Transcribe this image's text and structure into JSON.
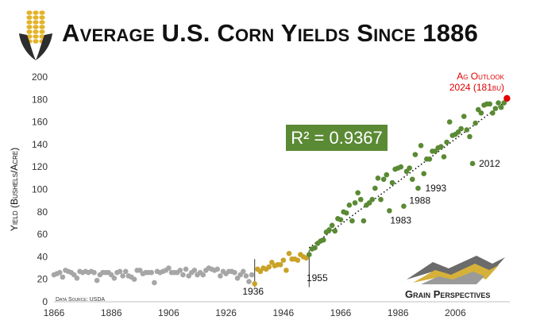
{
  "title": "Average U.S. Corn Yields Since 1886",
  "brand": "Grain Perspectives",
  "data_source": "Data Source: USDA",
  "colors": {
    "early": "#a6a6a6",
    "mid": "#c9a227",
    "modern": "#5a8a34",
    "outlook": "#e00000",
    "r2_box": "#5a8a34"
  },
  "chart_data": {
    "type": "scatter",
    "title": "Average U.S. Corn Yields Since 1886",
    "ylabel": "Yield (Bushels/Acre)",
    "xlabel": "",
    "xlim": [
      1866,
      2025
    ],
    "ylim": [
      0,
      200
    ],
    "x_ticks": [
      "1866",
      "1886",
      "1906",
      "1926",
      "1946",
      "1966",
      "1986",
      "2006"
    ],
    "y_ticks": [
      "0",
      "20",
      "40",
      "60",
      "80",
      "100",
      "120",
      "140",
      "160",
      "180",
      "200"
    ],
    "grid": false,
    "r_squared_label": "R² = 0.9367",
    "trendline": {
      "x": [
        1955,
        2024
      ],
      "y": [
        48,
        179
      ]
    },
    "dividers": [
      {
        "x": 1936,
        "label": "1936"
      },
      {
        "x": 1955,
        "label": "1955"
      }
    ],
    "annotations": [
      {
        "year": 2012,
        "value": 123,
        "label": "2012"
      },
      {
        "year": 1993,
        "value": 101,
        "label": "1993"
      },
      {
        "year": 1988,
        "value": 85,
        "label": "1988"
      },
      {
        "year": 1983,
        "value": 81,
        "label": "1983"
      }
    ],
    "outlook": {
      "year": 2024,
      "value": 181,
      "label_line1": "Ag Outlook",
      "label_line2": "2024 (181bu)"
    },
    "series": [
      {
        "name": "early",
        "x": [
          1866,
          1867,
          1868,
          1869,
          1870,
          1871,
          1872,
          1873,
          1874,
          1875,
          1876,
          1877,
          1878,
          1879,
          1880,
          1881,
          1882,
          1883,
          1884,
          1885,
          1886,
          1887,
          1888,
          1889,
          1890,
          1891,
          1892,
          1893,
          1894,
          1895,
          1896,
          1897,
          1898,
          1899,
          1900,
          1901,
          1902,
          1903,
          1904,
          1905,
          1906,
          1907,
          1908,
          1909,
          1910,
          1911,
          1912,
          1913,
          1914,
          1915,
          1916,
          1917,
          1918,
          1919,
          1920,
          1921,
          1922,
          1923,
          1924,
          1925,
          1926,
          1927,
          1928,
          1929,
          1930,
          1931,
          1932,
          1933,
          1934,
          1935
        ],
        "y": [
          24,
          25,
          26,
          22,
          28,
          27,
          26,
          24,
          21,
          27,
          26,
          27,
          26,
          27,
          26,
          19,
          24,
          26,
          26,
          26,
          24,
          21,
          26,
          27,
          23,
          27,
          23,
          22,
          20,
          28,
          28,
          25,
          26,
          26,
          26,
          17,
          27,
          26,
          27,
          28,
          30,
          26,
          26,
          26,
          28,
          24,
          29,
          23,
          26,
          28,
          24,
          26,
          24,
          28,
          30,
          29,
          28,
          29,
          23,
          27,
          25,
          27,
          27,
          26,
          21,
          24,
          27,
          23,
          18,
          24
        ]
      },
      {
        "name": "mid",
        "x": [
          1936,
          1937,
          1938,
          1939,
          1940,
          1941,
          1942,
          1943,
          1944,
          1945,
          1946,
          1947,
          1948,
          1949,
          1950,
          1951,
          1952,
          1953,
          1954
        ],
        "y": [
          16,
          29,
          27,
          30,
          29,
          31,
          35,
          32,
          33,
          33,
          37,
          28,
          43,
          38,
          38,
          37,
          42,
          40,
          39
        ]
      },
      {
        "name": "modern",
        "x": [
          1955,
          1956,
          1957,
          1958,
          1959,
          1960,
          1961,
          1962,
          1963,
          1964,
          1965,
          1966,
          1967,
          1968,
          1969,
          1970,
          1971,
          1972,
          1973,
          1974,
          1975,
          1976,
          1977,
          1978,
          1979,
          1980,
          1981,
          1982,
          1983,
          1984,
          1985,
          1986,
          1987,
          1988,
          1989,
          1990,
          1991,
          1992,
          1993,
          1994,
          1995,
          1996,
          1997,
          1998,
          1999,
          2000,
          2001,
          2002,
          2003,
          2004,
          2005,
          2006,
          2007,
          2008,
          2009,
          2010,
          2011,
          2012,
          2013,
          2014,
          2015,
          2016,
          2017,
          2018,
          2019,
          2020,
          2021,
          2022,
          2023
        ],
        "y": [
          42,
          47,
          48,
          52,
          54,
          55,
          62,
          64,
          68,
          63,
          74,
          73,
          80,
          79,
          86,
          72,
          88,
          97,
          91,
          72,
          86,
          88,
          91,
          101,
          110,
          91,
          109,
          113,
          81,
          106,
          118,
          119,
          120,
          85,
          116,
          119,
          109,
          131,
          101,
          139,
          114,
          127,
          127,
          134,
          134,
          137,
          138,
          129,
          142,
          160,
          148,
          149,
          151,
          154,
          165,
          153,
          147,
          123,
          159,
          171,
          168,
          175,
          176,
          176,
          168,
          172,
          177,
          173,
          177
        ]
      }
    ]
  }
}
